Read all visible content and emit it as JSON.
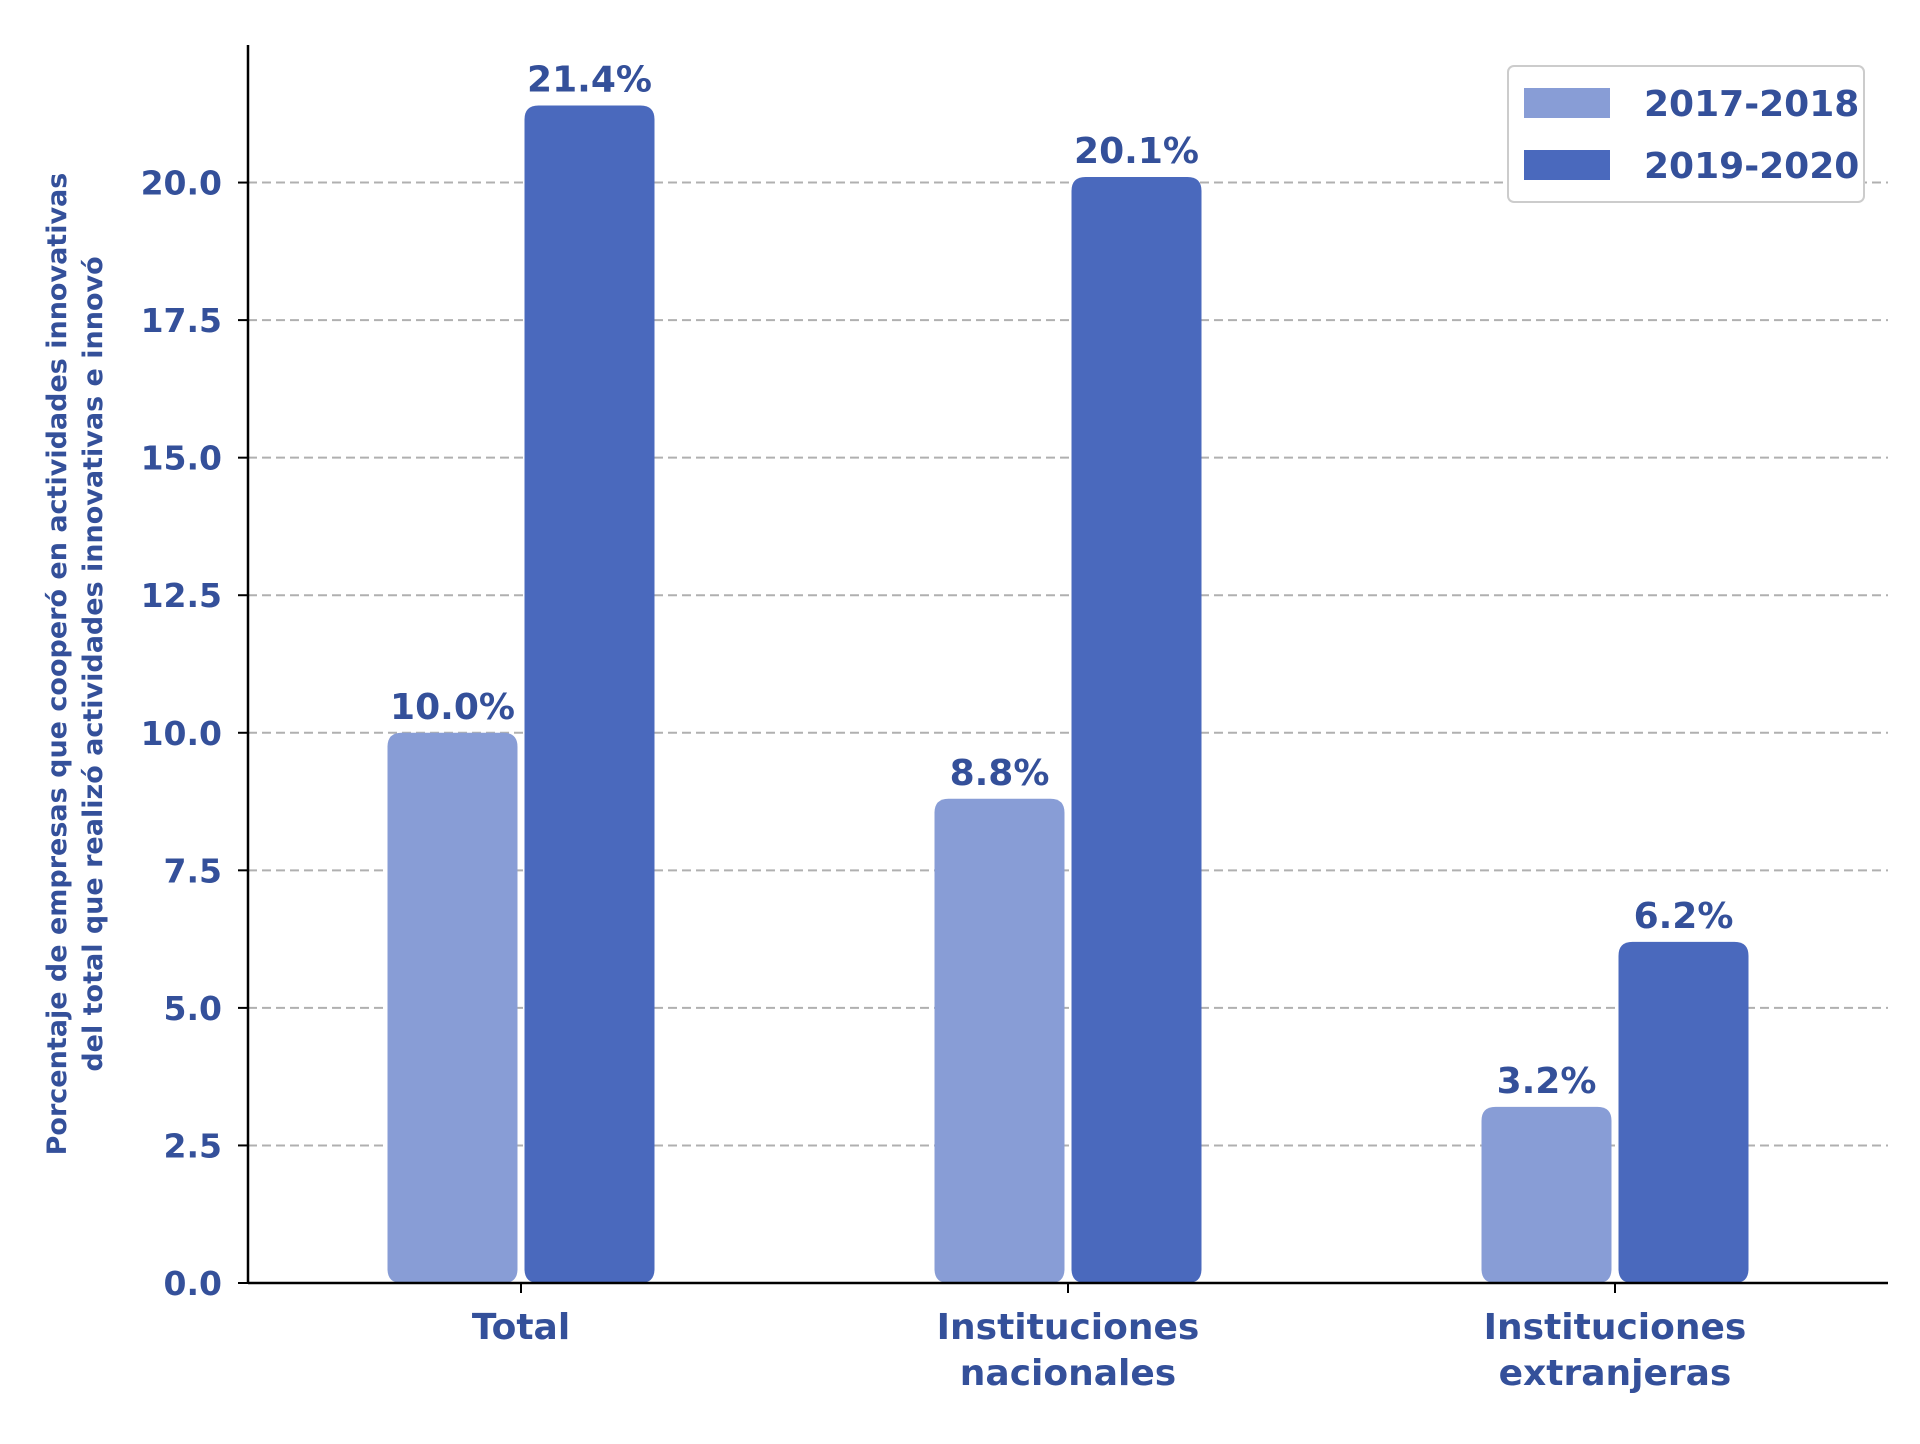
{
  "chart_data": {
    "type": "bar",
    "categories": [
      "Total",
      "Instituciones nacionales",
      "Instituciones extranjeras"
    ],
    "category_label_lines": [
      [
        "Total"
      ],
      [
        "Instituciones",
        "nacionales"
      ],
      [
        "Instituciones",
        "extranjeras"
      ]
    ],
    "series": [
      {
        "name": "2017-2018",
        "values": [
          10.0,
          8.8,
          3.2
        ],
        "labels": [
          "10.0%",
          "8.8%",
          "3.2%"
        ],
        "color": "#889dd6"
      },
      {
        "name": "2019-2020",
        "values": [
          21.4,
          20.1,
          6.2
        ],
        "labels": [
          "21.4%",
          "20.1%",
          "6.2%"
        ],
        "color": "#4a69bd"
      }
    ],
    "title": "",
    "xlabel": "",
    "ylabel_lines": [
      "Porcentaje de empresas que cooperó en actividades innovativas",
      "del total que realizó actividades innovativas e innovó"
    ],
    "ylim": [
      0,
      22.5
    ],
    "yticks": [
      "0.0",
      "2.5",
      "5.0",
      "7.5",
      "10.0",
      "12.5",
      "15.0",
      "17.5",
      "20.0"
    ],
    "grid": "horizontal-dashed",
    "legend_position": "top-right",
    "text_color": "#34509a",
    "axis_color": "#000000",
    "grid_color": "#b0b0b0"
  }
}
